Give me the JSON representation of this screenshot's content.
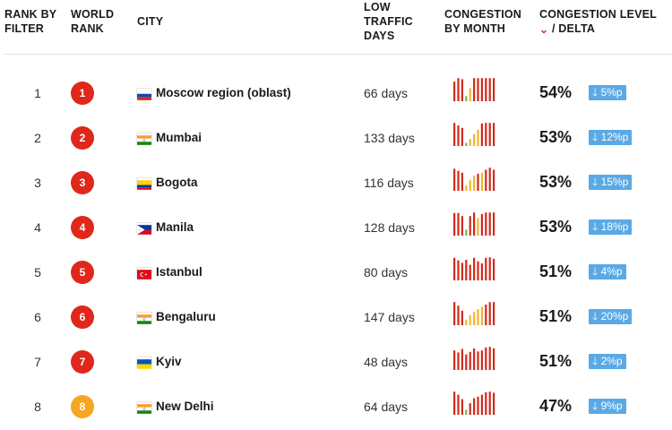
{
  "headers": {
    "rank_by_filter": "RANK BY\nFILTER",
    "world_rank": "WORLD\nRANK",
    "city": "CITY",
    "low_traffic_days": "LOW\nTRAFFIC\nDAYS",
    "congestion_by_month": "CONGESTION\nBY MONTH",
    "congestion_level": "CONGESTION LEVEL",
    "congestion_level_suffix": "/ DELTA",
    "sort_arrow": "⌄"
  },
  "colors": {
    "badge_red": "#e0271b",
    "badge_yellow": "#f5a623",
    "bar_red": "#d12a1c",
    "bar_yellow": "#f3b530",
    "bar_green": "#6cbf4c",
    "delta_blue": "#5aa9e6"
  },
  "rows": [
    {
      "rank": "1",
      "world_rank": "1",
      "badge": "red",
      "flag": "russia",
      "city": "Moscow region (oblast)",
      "days": "66 days",
      "level": "54%",
      "delta": "🡓 5%p",
      "months": [
        {
          "v": 0.78,
          "c": "red"
        },
        {
          "v": 0.92,
          "c": "red"
        },
        {
          "v": 0.88,
          "c": "red"
        },
        {
          "v": 0.2,
          "c": "green"
        },
        {
          "v": 0.52,
          "c": "yellow"
        },
        {
          "v": 0.92,
          "c": "red"
        },
        {
          "v": 0.92,
          "c": "red"
        },
        {
          "v": 0.92,
          "c": "red"
        },
        {
          "v": 0.92,
          "c": "red"
        },
        {
          "v": 0.92,
          "c": "red"
        },
        {
          "v": 0.92,
          "c": "red"
        }
      ]
    },
    {
      "rank": "2",
      "world_rank": "2",
      "badge": "red",
      "flag": "india",
      "city": "Mumbai",
      "days": "133 days",
      "level": "53%",
      "delta": "🡓 12%p",
      "months": [
        {
          "v": 0.92,
          "c": "red"
        },
        {
          "v": 0.82,
          "c": "red"
        },
        {
          "v": 0.72,
          "c": "red"
        },
        {
          "v": 0.12,
          "c": "green"
        },
        {
          "v": 0.28,
          "c": "yellow"
        },
        {
          "v": 0.48,
          "c": "yellow"
        },
        {
          "v": 0.66,
          "c": "yellow"
        },
        {
          "v": 0.9,
          "c": "red"
        },
        {
          "v": 0.92,
          "c": "red"
        },
        {
          "v": 0.92,
          "c": "red"
        },
        {
          "v": 0.92,
          "c": "red"
        }
      ]
    },
    {
      "rank": "3",
      "world_rank": "3",
      "badge": "red",
      "flag": "colombia",
      "city": "Bogota",
      "days": "116 days",
      "level": "53%",
      "delta": "🡓 15%p",
      "months": [
        {
          "v": 0.88,
          "c": "red"
        },
        {
          "v": 0.8,
          "c": "red"
        },
        {
          "v": 0.72,
          "c": "red"
        },
        {
          "v": 0.22,
          "c": "yellow"
        },
        {
          "v": 0.42,
          "c": "yellow"
        },
        {
          "v": 0.6,
          "c": "yellow"
        },
        {
          "v": 0.68,
          "c": "red"
        },
        {
          "v": 0.72,
          "c": "yellow"
        },
        {
          "v": 0.84,
          "c": "red"
        },
        {
          "v": 0.92,
          "c": "red"
        },
        {
          "v": 0.84,
          "c": "red"
        }
      ]
    },
    {
      "rank": "4",
      "world_rank": "4",
      "badge": "red",
      "flag": "philippines",
      "city": "Manila",
      "days": "128 days",
      "level": "53%",
      "delta": "🡓 18%p",
      "months": [
        {
          "v": 0.9,
          "c": "red"
        },
        {
          "v": 0.9,
          "c": "red"
        },
        {
          "v": 0.78,
          "c": "red"
        },
        {
          "v": 0.24,
          "c": "green"
        },
        {
          "v": 0.78,
          "c": "red"
        },
        {
          "v": 0.92,
          "c": "red"
        },
        {
          "v": 0.7,
          "c": "yellow"
        },
        {
          "v": 0.86,
          "c": "red"
        },
        {
          "v": 0.92,
          "c": "red"
        },
        {
          "v": 0.92,
          "c": "red"
        },
        {
          "v": 0.92,
          "c": "red"
        }
      ]
    },
    {
      "rank": "5",
      "world_rank": "5",
      "badge": "red",
      "flag": "turkey",
      "city": "Istanbul",
      "days": "80 days",
      "level": "51%",
      "delta": "🡓 4%p",
      "months": [
        {
          "v": 0.9,
          "c": "red"
        },
        {
          "v": 0.8,
          "c": "red"
        },
        {
          "v": 0.7,
          "c": "red"
        },
        {
          "v": 0.82,
          "c": "red"
        },
        {
          "v": 0.62,
          "c": "red"
        },
        {
          "v": 0.9,
          "c": "red"
        },
        {
          "v": 0.76,
          "c": "red"
        },
        {
          "v": 0.68,
          "c": "red"
        },
        {
          "v": 0.9,
          "c": "red"
        },
        {
          "v": 0.92,
          "c": "red"
        },
        {
          "v": 0.86,
          "c": "red"
        }
      ]
    },
    {
      "rank": "6",
      "world_rank": "6",
      "badge": "red",
      "flag": "india",
      "city": "Bengaluru",
      "days": "147 days",
      "level": "51%",
      "delta": "🡓 20%p",
      "months": [
        {
          "v": 0.92,
          "c": "red"
        },
        {
          "v": 0.78,
          "c": "red"
        },
        {
          "v": 0.58,
          "c": "red"
        },
        {
          "v": 0.22,
          "c": "yellow"
        },
        {
          "v": 0.4,
          "c": "yellow"
        },
        {
          "v": 0.52,
          "c": "yellow"
        },
        {
          "v": 0.64,
          "c": "yellow"
        },
        {
          "v": 0.74,
          "c": "yellow"
        },
        {
          "v": 0.82,
          "c": "red"
        },
        {
          "v": 0.92,
          "c": "red"
        },
        {
          "v": 0.92,
          "c": "red"
        }
      ]
    },
    {
      "rank": "7",
      "world_rank": "7",
      "badge": "red",
      "flag": "ukraine",
      "city": "Kyiv",
      "days": "48 days",
      "level": "51%",
      "delta": "🡓 2%p",
      "months": [
        {
          "v": 0.78,
          "c": "red"
        },
        {
          "v": 0.7,
          "c": "red"
        },
        {
          "v": 0.84,
          "c": "red"
        },
        {
          "v": 0.62,
          "c": "red"
        },
        {
          "v": 0.72,
          "c": "red"
        },
        {
          "v": 0.86,
          "c": "red"
        },
        {
          "v": 0.74,
          "c": "red"
        },
        {
          "v": 0.78,
          "c": "red"
        },
        {
          "v": 0.9,
          "c": "red"
        },
        {
          "v": 0.92,
          "c": "red"
        },
        {
          "v": 0.86,
          "c": "red"
        }
      ]
    },
    {
      "rank": "8",
      "world_rank": "8",
      "badge": "yellow",
      "flag": "india",
      "city": "New Delhi",
      "days": "64 days",
      "level": "47%",
      "delta": "🡓 9%p",
      "months": [
        {
          "v": 0.92,
          "c": "red"
        },
        {
          "v": 0.8,
          "c": "red"
        },
        {
          "v": 0.62,
          "c": "red"
        },
        {
          "v": 0.2,
          "c": "green"
        },
        {
          "v": 0.46,
          "c": "red"
        },
        {
          "v": 0.66,
          "c": "red"
        },
        {
          "v": 0.72,
          "c": "red"
        },
        {
          "v": 0.8,
          "c": "red"
        },
        {
          "v": 0.9,
          "c": "red"
        },
        {
          "v": 0.92,
          "c": "red"
        },
        {
          "v": 0.88,
          "c": "red"
        }
      ]
    }
  ]
}
